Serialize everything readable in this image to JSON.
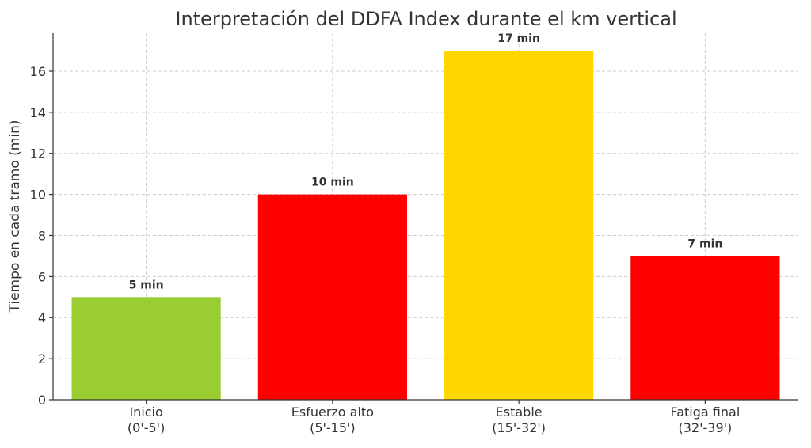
{
  "chart_data": {
    "type": "bar",
    "title": "Interpretación del DDFA Index durante el km vertical",
    "xlabel": "",
    "ylabel": "Tiempo en cada tramo (min)",
    "ylim": [
      0,
      17.85
    ],
    "yticks": [
      0,
      2,
      4,
      6,
      8,
      10,
      12,
      14,
      16
    ],
    "grid": true,
    "categories": [
      [
        "Inicio",
        "(0'-5')"
      ],
      [
        "Esfuerzo alto",
        "(5'-15')"
      ],
      [
        "Estable",
        "(15'-32')"
      ],
      [
        "Fatiga final",
        "(32'-39')"
      ]
    ],
    "values": [
      5,
      10,
      17,
      7
    ],
    "data_labels": [
      "5 min",
      "10 min",
      "17 min",
      "7 min"
    ],
    "colors": [
      "#9acd32",
      "#ff0000",
      "#ffd700",
      "#ff0000"
    ]
  }
}
